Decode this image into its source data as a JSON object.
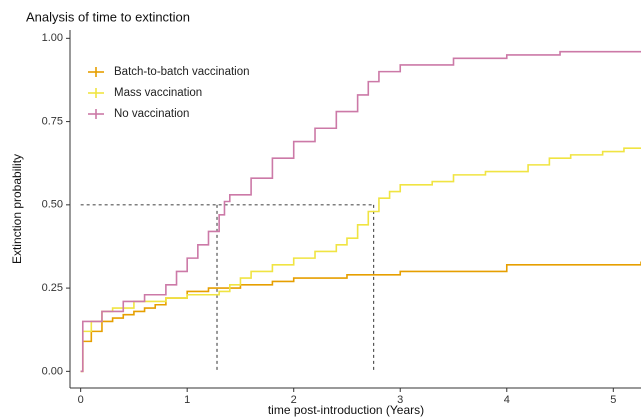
{
  "chart_data": {
    "type": "line",
    "step": true,
    "title": "Analysis of time to extinction",
    "xlabel": "time post-introduction (Years)",
    "ylabel": "Extinction probability",
    "xlim": [
      -0.1,
      5.26
    ],
    "ylim": [
      -0.05,
      1.025
    ],
    "xticks": [
      0,
      1,
      2,
      3,
      4,
      5
    ],
    "yticks": [
      {
        "value": 0,
        "label": "0.00"
      },
      {
        "value": 0.25,
        "label": "0.25"
      },
      {
        "value": 0.5,
        "label": "0.50"
      },
      {
        "value": 0.75,
        "label": "0.75"
      },
      {
        "value": 1,
        "label": "1.00"
      }
    ],
    "reference_lines": {
      "y": 0.5,
      "x": [
        1.28,
        2.75
      ],
      "color": "#555555"
    },
    "series": [
      {
        "name": "Batch-to-batch vaccination",
        "color": "#e69f00",
        "x": [
          0,
          0.02,
          0.1,
          0.2,
          0.3,
          0.4,
          0.5,
          0.6,
          0.7,
          0.8,
          1.0,
          1.2,
          1.5,
          1.8,
          2.0,
          2.5,
          3.0,
          4.0,
          5.26
        ],
        "values": [
          0,
          0.09,
          0.12,
          0.15,
          0.16,
          0.17,
          0.18,
          0.19,
          0.2,
          0.22,
          0.24,
          0.25,
          0.26,
          0.27,
          0.28,
          0.29,
          0.3,
          0.32,
          0.33
        ]
      },
      {
        "name": "Mass vaccination",
        "color": "#f0e442",
        "x": [
          0,
          0.02,
          0.1,
          0.2,
          0.3,
          0.5,
          0.8,
          1.0,
          1.3,
          1.4,
          1.5,
          1.6,
          1.8,
          2.0,
          2.2,
          2.4,
          2.5,
          2.6,
          2.7,
          2.8,
          2.9,
          3.0,
          3.3,
          3.5,
          3.8,
          4.2,
          4.4,
          4.6,
          4.9,
          5.1,
          5.26
        ],
        "values": [
          0,
          0.12,
          0.15,
          0.18,
          0.19,
          0.21,
          0.22,
          0.23,
          0.24,
          0.26,
          0.28,
          0.3,
          0.32,
          0.34,
          0.36,
          0.38,
          0.4,
          0.44,
          0.48,
          0.52,
          0.54,
          0.56,
          0.57,
          0.59,
          0.6,
          0.62,
          0.64,
          0.65,
          0.66,
          0.67,
          0.67
        ]
      },
      {
        "name": "No vaccination",
        "color": "#cc79a7",
        "x": [
          0,
          0.02,
          0.2,
          0.4,
          0.6,
          0.8,
          0.9,
          1.0,
          1.1,
          1.2,
          1.3,
          1.35,
          1.4,
          1.6,
          1.8,
          2.0,
          2.2,
          2.4,
          2.6,
          2.7,
          2.8,
          3.0,
          3.5,
          4.0,
          4.5,
          5.26
        ],
        "values": [
          0,
          0.15,
          0.18,
          0.21,
          0.23,
          0.26,
          0.3,
          0.34,
          0.38,
          0.42,
          0.47,
          0.51,
          0.53,
          0.58,
          0.64,
          0.69,
          0.73,
          0.78,
          0.83,
          0.87,
          0.9,
          0.92,
          0.94,
          0.95,
          0.96,
          0.96
        ]
      }
    ]
  }
}
